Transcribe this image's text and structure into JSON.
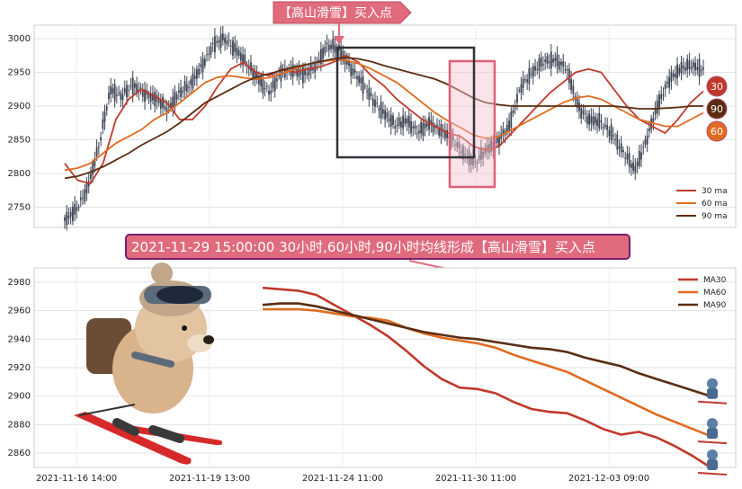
{
  "top_callout": "【高山滑雪】买入点",
  "signal_banner": "2021-11-29 15:00:00 30小时,60小时,90小时均线形成【高山滑雪】买入点",
  "colors": {
    "ma30": "#c0392b",
    "ma60": "#e06b20",
    "ma90": "#5a2d12",
    "candle": "#3b4252",
    "callout_fill": "#e06b7d",
    "banner_fill": "#e06b7d",
    "banner_border": "#7a1f6e",
    "highlight": "#e0607a",
    "box": "#33333d"
  },
  "chart_data": [
    {
      "type": "candlestick",
      "panel": "top",
      "ylim": [
        2720,
        3020
      ],
      "yticks": [
        2750,
        2800,
        2850,
        2900,
        2950,
        3000
      ],
      "legend": {
        "placement": "bottom-right",
        "entries": [
          "30 ma",
          "60 ma",
          "90 ma"
        ]
      },
      "ma_badges": [
        "30",
        "90",
        "60"
      ],
      "series": [
        {
          "name": "30 ma",
          "values": [
            2815,
            2790,
            2785,
            2815,
            2880,
            2910,
            2925,
            2915,
            2905,
            2880,
            2880,
            2900,
            2930,
            2955,
            2965,
            2950,
            2945,
            2955,
            2950,
            2955,
            2958,
            2965,
            2975,
            2965,
            2945,
            2930,
            2910,
            2895,
            2880,
            2870,
            2860,
            2855,
            2840,
            2835,
            2840,
            2860,
            2880,
            2900,
            2920,
            2935,
            2950,
            2955,
            2950,
            2925,
            2900,
            2880,
            2870,
            2860,
            2880,
            2905,
            2922
          ]
        },
        {
          "name": "60 ma",
          "values": [
            2805,
            2808,
            2815,
            2830,
            2845,
            2855,
            2865,
            2880,
            2890,
            2905,
            2920,
            2935,
            2943,
            2945,
            2942,
            2940,
            2942,
            2948,
            2955,
            2962,
            2966,
            2968,
            2968,
            2963,
            2955,
            2945,
            2935,
            2920,
            2905,
            2890,
            2878,
            2868,
            2857,
            2852,
            2855,
            2865,
            2875,
            2885,
            2895,
            2905,
            2912,
            2915,
            2910,
            2900,
            2890,
            2880,
            2875,
            2870,
            2870,
            2880,
            2890
          ]
        },
        {
          "name": "90 ma",
          "values": [
            2793,
            2796,
            2802,
            2810,
            2820,
            2830,
            2842,
            2852,
            2862,
            2875,
            2890,
            2905,
            2915,
            2925,
            2935,
            2943,
            2948,
            2953,
            2958,
            2962,
            2966,
            2970,
            2972,
            2970,
            2966,
            2960,
            2955,
            2950,
            2945,
            2940,
            2932,
            2922,
            2912,
            2905,
            2902,
            2900,
            2900,
            2900,
            2900,
            2900,
            2900,
            2900,
            2900,
            2900,
            2898,
            2896,
            2896,
            2897,
            2898,
            2900,
            2900
          ]
        },
        {
          "name": "price",
          "values": [
            2730,
            2745,
            2780,
            2840,
            2925,
            2915,
            2930,
            2920,
            2910,
            2895,
            2920,
            2930,
            2960,
            2990,
            3000,
            2985,
            2960,
            2940,
            2920,
            2950,
            2955,
            2945,
            2960,
            2990,
            2985,
            2960,
            2935,
            2910,
            2890,
            2870,
            2880,
            2860,
            2875,
            2865,
            2850,
            2830,
            2815,
            2835,
            2850,
            2870,
            2930,
            2950,
            2965,
            2970,
            2955,
            2900,
            2880,
            2875,
            2860,
            2830,
            2805,
            2850,
            2900,
            2940,
            2955,
            2960,
            2955
          ]
        }
      ]
    },
    {
      "type": "line",
      "panel": "bottom",
      "ylim": [
        2850,
        2990
      ],
      "yticks": [
        2860,
        2880,
        2900,
        2920,
        2940,
        2960,
        2980
      ],
      "xticks": [
        "2021-11-16 14:00",
        "2021-11-19 13:00",
        "2021-11-24 11:00",
        "2021-11-30 11:00",
        "2021-12-03 09:00"
      ],
      "legend": {
        "placement": "top-right",
        "entries": [
          "MA30",
          "MA60",
          "MA90"
        ]
      },
      "series": [
        {
          "name": "MA30",
          "values": [
            2976,
            2975,
            2974,
            2971,
            2964,
            2957,
            2950,
            2942,
            2932,
            2921,
            2912,
            2906,
            2905,
            2902,
            2896,
            2891,
            2889,
            2888,
            2883,
            2877,
            2873,
            2875,
            2871,
            2865,
            2858,
            2850
          ]
        },
        {
          "name": "MA60",
          "values": [
            2961,
            2961,
            2961,
            2960,
            2958,
            2956,
            2955,
            2953,
            2948,
            2944,
            2941,
            2939,
            2937,
            2934,
            2929,
            2925,
            2921,
            2917,
            2911,
            2905,
            2899,
            2893,
            2887,
            2882,
            2877,
            2872
          ]
        },
        {
          "name": "MA90",
          "values": [
            2964,
            2965,
            2965,
            2963,
            2960,
            2957,
            2954,
            2951,
            2948,
            2945,
            2943,
            2941,
            2940,
            2938,
            2936,
            2934,
            2933,
            2931,
            2927,
            2924,
            2921,
            2916,
            2912,
            2908,
            2904,
            2900
          ]
        }
      ]
    }
  ]
}
